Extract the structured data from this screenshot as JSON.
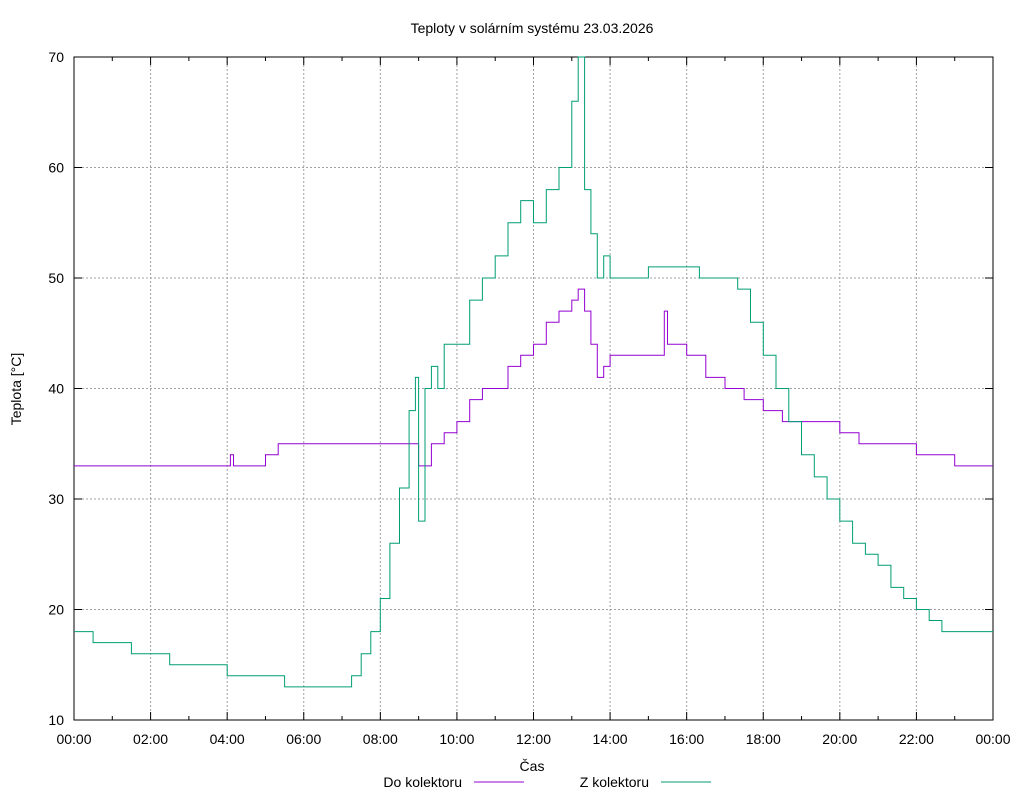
{
  "chart_data": {
    "type": "line",
    "title": "Teploty v solárním systému 23.03.2026",
    "xlabel": "Čas",
    "ylabel": "Teplota [°C]",
    "xlim": [
      "00:00",
      "24:00"
    ],
    "ylim": [
      10,
      70
    ],
    "grid": true,
    "legend_position": "bottom",
    "x_ticks": [
      "00:00",
      "02:00",
      "04:00",
      "06:00",
      "08:00",
      "10:00",
      "12:00",
      "14:00",
      "16:00",
      "18:00",
      "20:00",
      "22:00",
      "00:00"
    ],
    "y_ticks": [
      10,
      20,
      30,
      40,
      50,
      60,
      70
    ],
    "series": [
      {
        "name": "Do kolektoru",
        "color": "#9400d3",
        "x": [
          "00:00",
          "04:00",
          "04:05",
          "04:10",
          "05:00",
          "05:20",
          "06:00",
          "07:00",
          "08:00",
          "08:45",
          "09:00",
          "09:20",
          "09:40",
          "10:00",
          "10:20",
          "10:40",
          "11:00",
          "11:20",
          "11:40",
          "12:00",
          "12:20",
          "12:40",
          "13:00",
          "13:10",
          "13:20",
          "13:30",
          "13:40",
          "13:50",
          "14:00",
          "14:30",
          "15:00",
          "15:20",
          "15:25",
          "15:30",
          "16:00",
          "16:30",
          "17:00",
          "17:30",
          "18:00",
          "18:30",
          "19:00",
          "19:30",
          "20:00",
          "20:30",
          "21:00",
          "21:30",
          "22:00",
          "22:30",
          "23:00",
          "23:30",
          "24:00"
        ],
        "y": [
          33,
          33,
          34,
          33,
          34,
          35,
          35,
          35,
          35,
          35,
          33,
          35,
          36,
          37,
          39,
          40,
          40,
          42,
          43,
          44,
          46,
          47,
          48,
          49,
          47,
          44,
          41,
          42,
          43,
          43,
          43,
          43,
          47,
          44,
          43,
          41,
          40,
          39,
          38,
          37,
          37,
          37,
          36,
          35,
          35,
          35,
          34,
          34,
          33,
          33,
          33
        ]
      },
      {
        "name": "Z kolektoru",
        "color": "#009e73",
        "x": [
          "00:00",
          "00:30",
          "01:00",
          "01:30",
          "02:00",
          "02:30",
          "03:00",
          "03:30",
          "04:00",
          "04:30",
          "05:00",
          "05:30",
          "06:00",
          "06:30",
          "07:00",
          "07:15",
          "07:30",
          "07:45",
          "08:00",
          "08:15",
          "08:30",
          "08:45",
          "08:55",
          "09:00",
          "09:10",
          "09:20",
          "09:30",
          "09:40",
          "10:00",
          "10:20",
          "10:40",
          "11:00",
          "11:20",
          "11:40",
          "12:00",
          "12:20",
          "12:40",
          "13:00",
          "13:10",
          "13:20",
          "13:30",
          "13:40",
          "13:50",
          "14:00",
          "14:30",
          "15:00",
          "15:30",
          "16:00",
          "16:20",
          "16:30",
          "16:40",
          "17:00",
          "17:20",
          "17:40",
          "18:00",
          "18:20",
          "18:40",
          "19:00",
          "19:20",
          "19:40",
          "20:00",
          "20:20",
          "20:40",
          "21:00",
          "21:20",
          "21:40",
          "22:00",
          "22:20",
          "22:40",
          "23:00",
          "23:20",
          "23:40",
          "24:00"
        ],
        "y": [
          18,
          17,
          17,
          16,
          16,
          15,
          15,
          15,
          14,
          14,
          14,
          13,
          13,
          13,
          13,
          14,
          16,
          18,
          21,
          26,
          31,
          38,
          41,
          28,
          40,
          42,
          40,
          44,
          44,
          48,
          50,
          52,
          55,
          57,
          55,
          58,
          60,
          66,
          70,
          58,
          54,
          50,
          52,
          50,
          50,
          51,
          51,
          51,
          50,
          50,
          50,
          50,
          49,
          46,
          43,
          40,
          37,
          34,
          32,
          30,
          28,
          26,
          25,
          24,
          22,
          21,
          20,
          19,
          18,
          18,
          18,
          18,
          18
        ]
      }
    ]
  }
}
